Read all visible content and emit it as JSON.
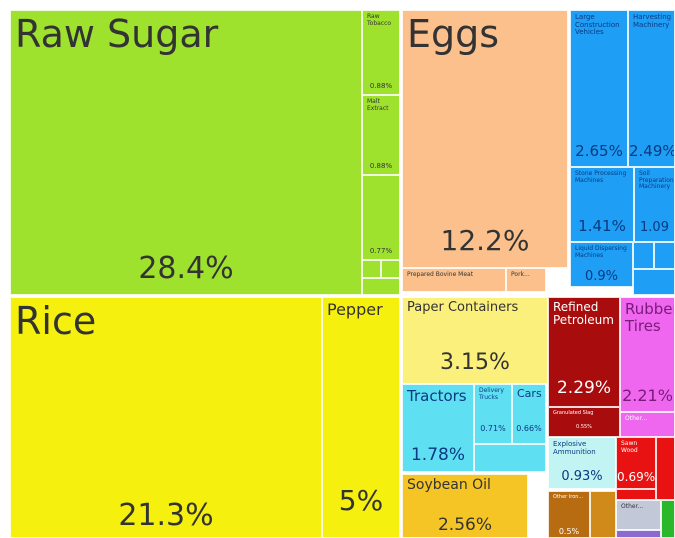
{
  "chart_data": {
    "type": "treemap",
    "categories": [
      "Raw Sugar",
      "Raw Tobacco",
      "Malt Extract",
      null,
      "Eggs",
      "Prepared Bovine Meat",
      "Pork...",
      "Large Construction Vehicles",
      "Harvesting Machinery",
      "Stone Processing Machines",
      "Soil Preparation Machinery",
      "Liquid Dispersing Machines",
      "Rice",
      "Pepper",
      "Paper Containers",
      "Tractors",
      "Delivery Trucks",
      "Cars",
      "Soybean Oil",
      "Refined Petroleum",
      "Granulated Slag",
      "Rubber Tires",
      "Other...",
      "Explosive Ammunition",
      "Sawn Wood",
      "Other Iron...",
      "Other..."
    ],
    "values": [
      28.4,
      0.88,
      0.88,
      0.77,
      12.2,
      0.6,
      0.3,
      2.65,
      2.49,
      1.41,
      1.09,
      0.9,
      21.3,
      5,
      3.15,
      1.78,
      0.71,
      0.66,
      2.56,
      2.29,
      0.55,
      2.21,
      0.4,
      0.93,
      0.69,
      0.5,
      0.4
    ],
    "value_labels": [
      "28.4%",
      "0.88%",
      "0.88%",
      "0.77%",
      "12.2%",
      null,
      null,
      "2.65%",
      "2.49%",
      "1.41%",
      "1.09",
      "0.9%",
      "21.3%",
      "5%",
      "3.15%",
      "1.78%",
      "0.71%",
      "0.66%",
      "2.56%",
      "2.29%",
      "0.55%",
      "2.21%",
      null,
      "0.93%",
      "0.69%",
      "0.5%",
      null
    ],
    "colors": [
      "#9ee22e",
      "#9ee22e",
      "#9ee22e",
      "#9ee22e",
      "#fbc08c",
      "#fbc08c",
      "#fbc08c",
      "#1e9ef4",
      "#1e9ef4",
      "#1e9ef4",
      "#1e9ef4",
      "#1e9ef4",
      "#f6f00e",
      "#f6f00e",
      "#fbf07c",
      "#5fe0f2",
      "#5fe0f2",
      "#5fe0f2",
      "#f5c526",
      "#a80c0c",
      "#a80c0c",
      "#ef66ef",
      "#ef66ef",
      "#c2f4f4",
      "#e81212",
      "#b86c12",
      "#c2c8d8"
    ]
  }
}
